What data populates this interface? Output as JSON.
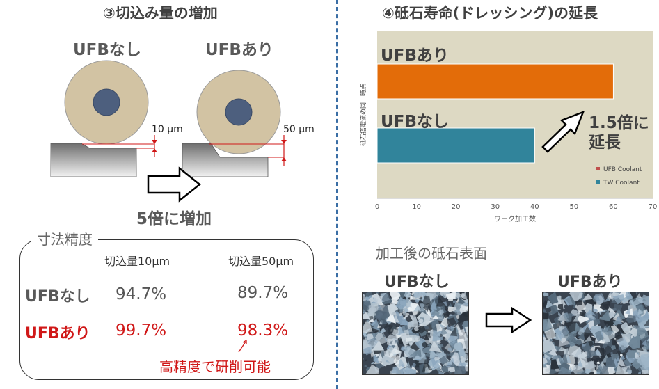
{
  "left": {
    "title": "③切込み量の増加",
    "label_without": "UFBなし",
    "label_with": "UFBあり",
    "depth_without": "10 μm",
    "depth_with": "50 μm",
    "increase_text": "5倍に増加",
    "table": {
      "title": "寸法精度",
      "col1": "切込量10μm",
      "col2": "切込量50μm",
      "rows": [
        {
          "label": "UFBなし",
          "v1": "94.7%",
          "v2": "89.7%"
        },
        {
          "label": "UFBあり",
          "v1": "99.7%",
          "v2": "98.3%"
        }
      ],
      "note": "高精度で研削可能"
    },
    "colors": {
      "wheel": "#d2c3a3",
      "hub": "#4d5f7e",
      "work": "#8a8a8a",
      "highlight": "#d01818"
    }
  },
  "right": {
    "title": "④砥石寿命(ドレッシング)の延長",
    "photo_title": "加工後の砥石表面",
    "photo_without": "UFBなし",
    "photo_with": "UFBあり"
  },
  "chart_data": {
    "type": "bar",
    "orientation": "horizontal",
    "categories": [
      "UFBあり",
      "UFBなし"
    ],
    "values": [
      60,
      40
    ],
    "colors": [
      "#e36c09",
      "#31849b"
    ],
    "xlabel": "ワーク加工数",
    "ylabel": "砥石搭電流の同一時点",
    "xlim": [
      0,
      70
    ],
    "xticks": [
      0,
      10,
      20,
      30,
      40,
      50,
      60,
      70
    ],
    "legend": [
      {
        "name": "UFB Coolant",
        "color": "#c0504d"
      },
      {
        "name": "TW Coolant",
        "color": "#31849b"
      }
    ],
    "legend_position": "bottom-right",
    "annotation": {
      "line1": "1.5倍に",
      "line2": "延長"
    },
    "background": "#ddd9c3"
  }
}
